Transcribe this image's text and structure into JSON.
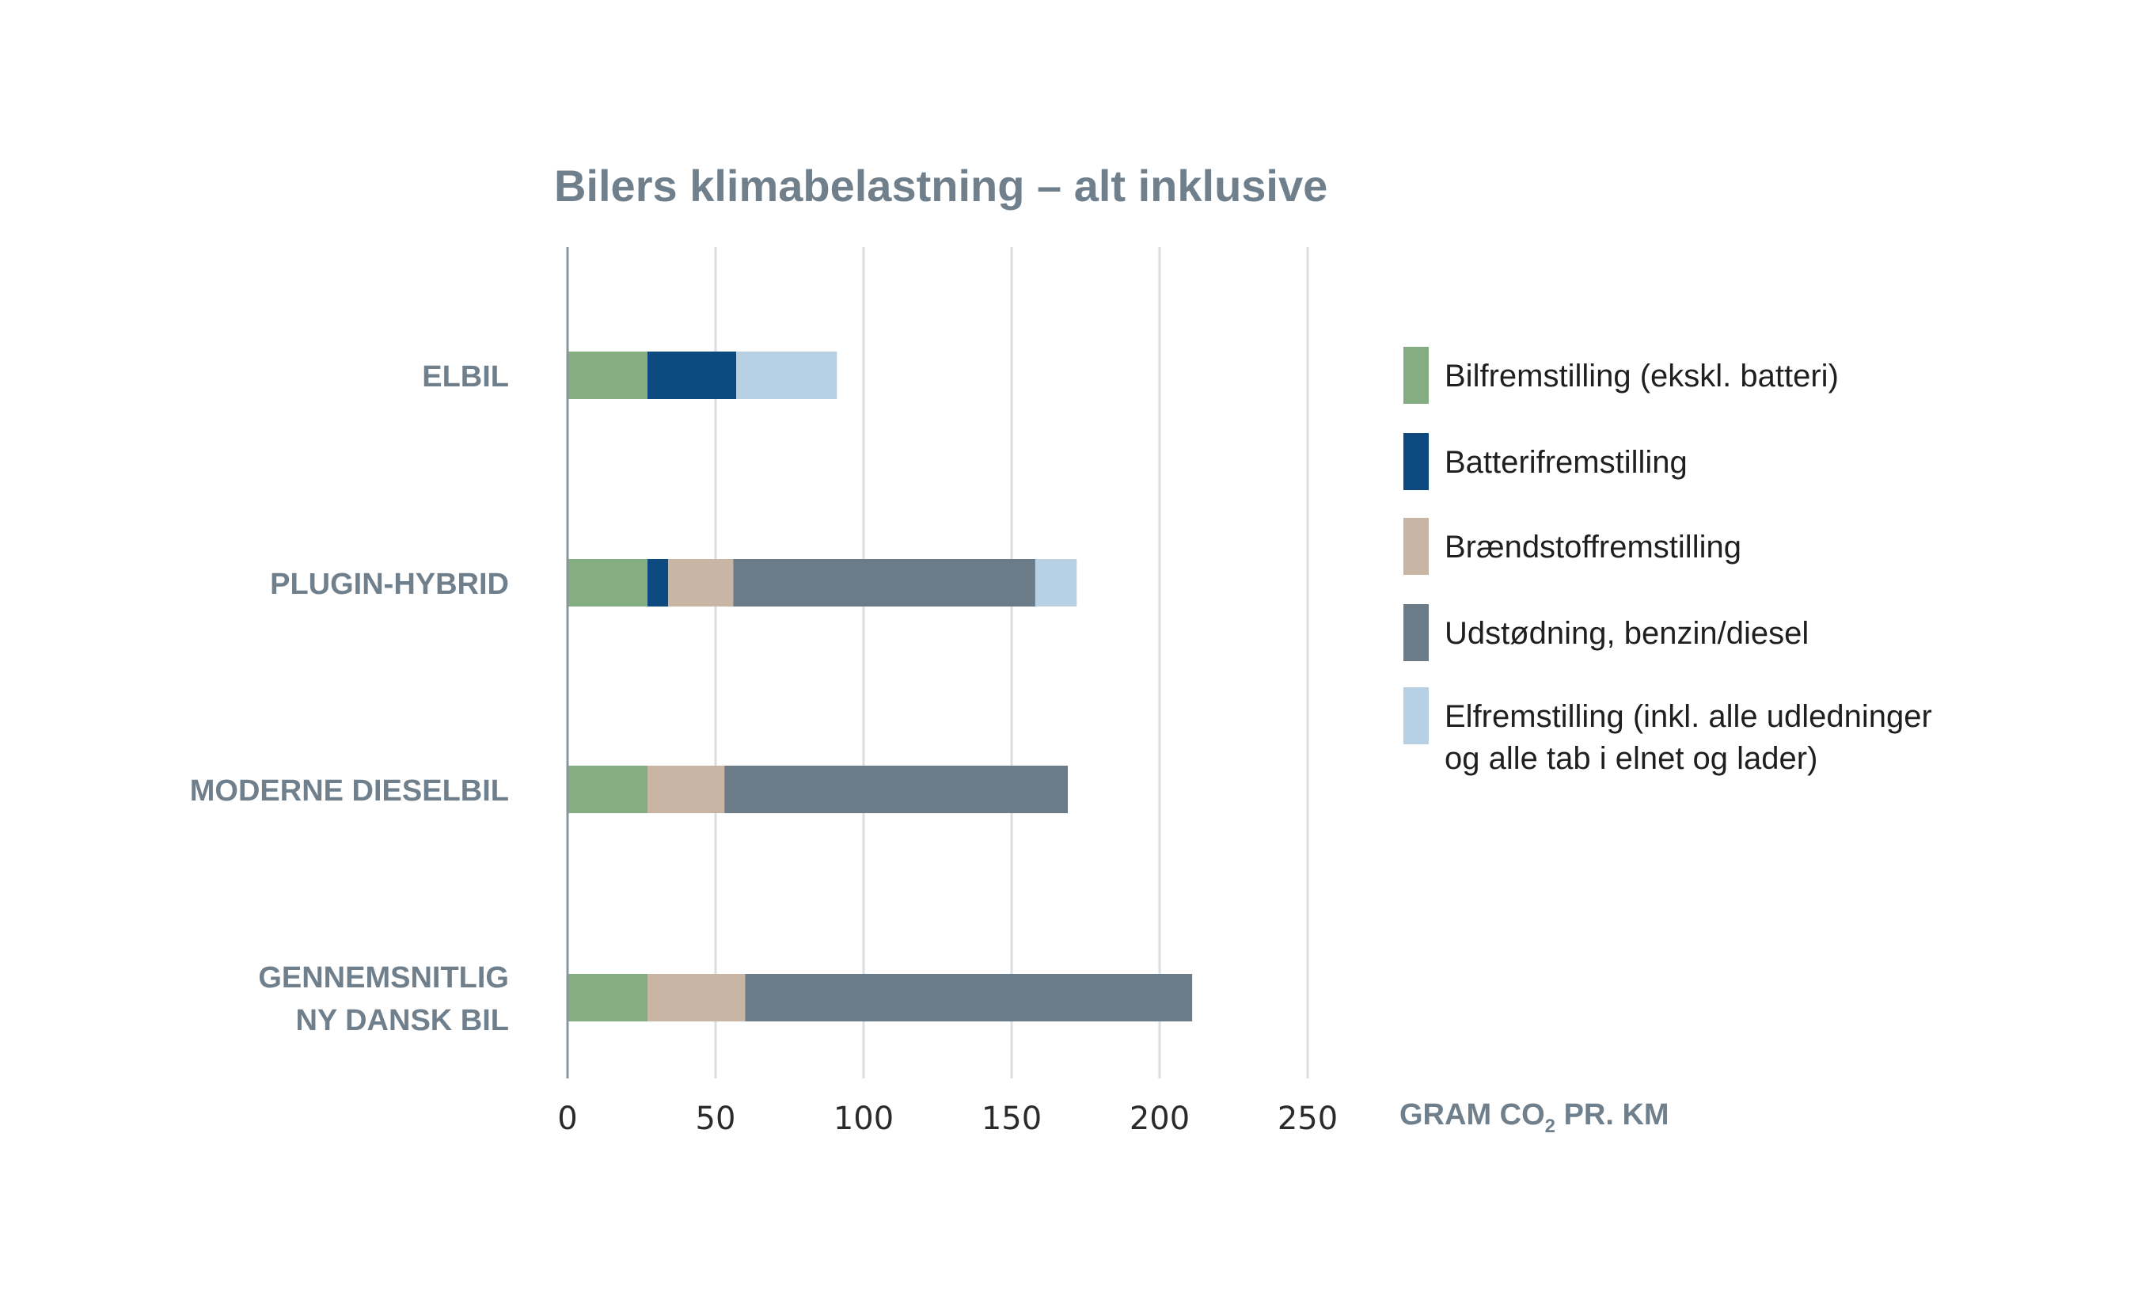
{
  "chart_data": {
    "type": "bar",
    "orientation": "horizontal",
    "stacked": true,
    "title": "Bilers klimabelastning – alt inklusive",
    "categories": [
      [
        "ELBIL"
      ],
      [
        "PLUGIN-HYBRID"
      ],
      [
        "MODERNE DIESELBIL"
      ],
      [
        "GENNEMSNITLIG",
        "NY DANSK BIL"
      ]
    ],
    "series": [
      {
        "name": [
          "Bilfremstilling (ekskl. batteri)"
        ],
        "color": "#85ad82",
        "values": [
          27,
          27,
          27,
          27
        ]
      },
      {
        "name": [
          "Batterifremstilling"
        ],
        "color": "#0d4a80",
        "values": [
          30,
          7,
          0,
          0
        ]
      },
      {
        "name": [
          "Brændstoffremstilling"
        ],
        "color": "#c9b5a3",
        "values": [
          0,
          22,
          26,
          33
        ]
      },
      {
        "name": [
          "Udstødning, benzin/diesel"
        ],
        "color": "#6b7b87",
        "values": [
          0,
          102,
          116,
          151
        ]
      },
      {
        "name": [
          "Elfremstilling (inkl. alle udledninger",
          "og alle tab i elnet og lader)"
        ],
        "color": "#b7d0e4",
        "values": [
          34,
          14,
          0,
          0
        ]
      }
    ],
    "xlim": [
      0,
      250
    ],
    "xticks": [
      0,
      50,
      100,
      150,
      200,
      250
    ],
    "xlabel": {
      "main": "GRAM CO",
      "sub": "2",
      "rest": " PR. KM"
    },
    "grid": "vertical",
    "legend": "right"
  }
}
